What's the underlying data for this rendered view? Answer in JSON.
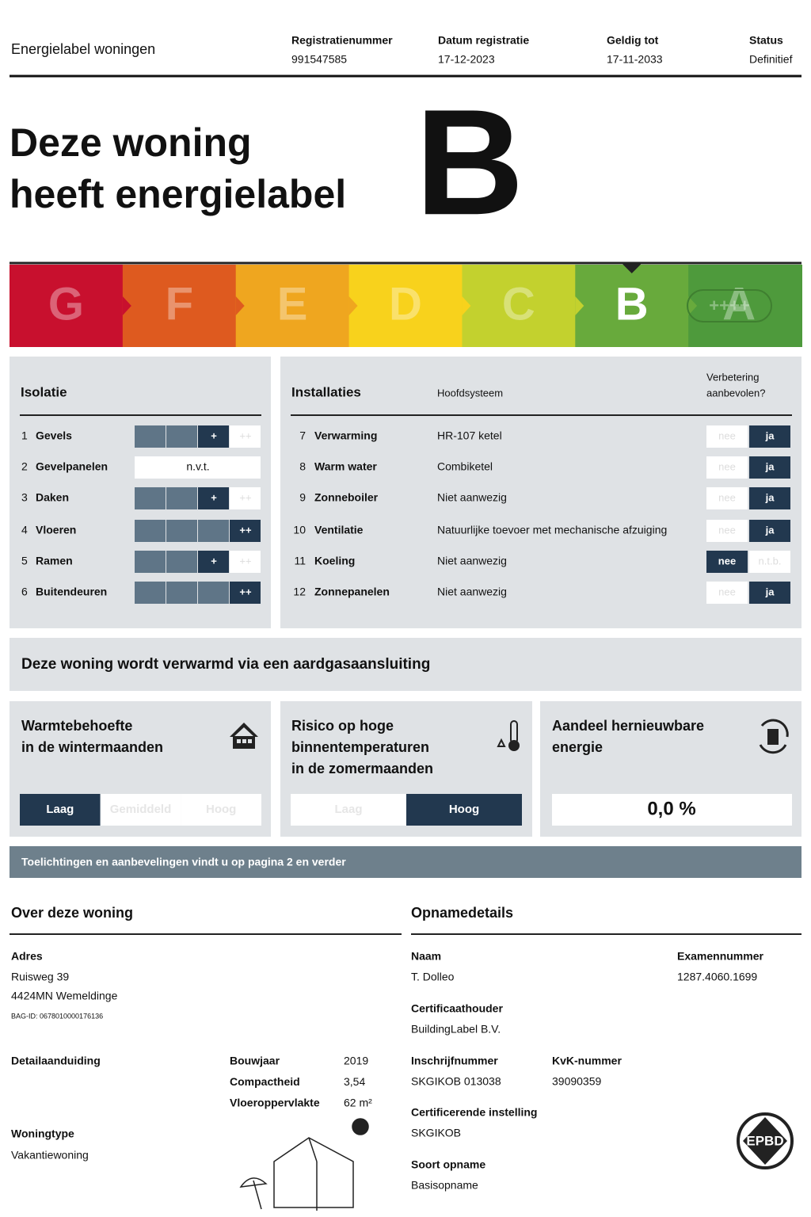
{
  "header": {
    "title": "Energielabel woningen",
    "fields": [
      {
        "label": "Registratienummer",
        "value": "991547585"
      },
      {
        "label": "Datum registratie",
        "value": "17-12-2023"
      },
      {
        "label": "Geldig tot",
        "value": "17-11-2033"
      },
      {
        "label": "Status",
        "value": "Definitief"
      }
    ]
  },
  "headline": {
    "lines": [
      "Deze woning",
      "heeft energielabel"
    ],
    "label": "B"
  },
  "scale": {
    "classes": [
      "G",
      "F",
      "E",
      "D",
      "C",
      "B",
      "A"
    ],
    "extra": "++++",
    "colors": [
      "#c8102e",
      "#de5a1f",
      "#efa61f",
      "#f8d21c",
      "#c3d12e",
      "#68aa3c",
      "#4e9a3c"
    ]
  },
  "isolatie": {
    "title": "Isolatie",
    "max": "++",
    "rows": [
      {
        "num": "1",
        "name": "Gevels",
        "value": "+"
      },
      {
        "num": "2",
        "name": "Gevelpanelen",
        "value": "n.v.t."
      },
      {
        "num": "3",
        "name": "Daken",
        "value": "+"
      },
      {
        "num": "4",
        "name": "Vloeren",
        "value": "++"
      },
      {
        "num": "5",
        "name": "Ramen",
        "value": "+"
      },
      {
        "num": "6",
        "name": "Buitendeuren",
        "value": "++"
      }
    ]
  },
  "installaties": {
    "title": "Installaties",
    "system_header": "Hoofdsysteem",
    "advice_header": [
      "Verbetering",
      "aanbevolen?"
    ],
    "rows": [
      {
        "num": "7",
        "name": "Verwarming",
        "system": "HR-107 ketel",
        "options": [
          "nee",
          "ja"
        ],
        "selected": 1
      },
      {
        "num": "8",
        "name": "Warm water",
        "system": "Combiketel",
        "options": [
          "nee",
          "ja"
        ],
        "selected": 1
      },
      {
        "num": "9",
        "name": "Zonneboiler",
        "system": "Niet aanwezig",
        "options": [
          "nee",
          "ja"
        ],
        "selected": 1
      },
      {
        "num": "10",
        "name": "Ventilatie",
        "system": "Natuurlijke toevoer met mechanische afzuiging",
        "options": [
          "nee",
          "ja"
        ],
        "selected": 1
      },
      {
        "num": "11",
        "name": "Koeling",
        "system": "Niet aanwezig",
        "options": [
          "nee",
          "n.t.b."
        ],
        "selected": 0
      },
      {
        "num": "12",
        "name": "Zonnepanelen",
        "system": "Niet aanwezig",
        "options": [
          "nee",
          "ja"
        ],
        "selected": 1
      }
    ]
  },
  "heating": "Deze woning wordt verwarmd via een aardgasaansluiting",
  "panels": [
    {
      "title": [
        "Warmtebehoefte",
        "in de wintermaanden"
      ],
      "options": [
        "Laag",
        "Gemiddeld",
        "Hoog"
      ],
      "selected": 0
    },
    {
      "title": [
        "Risico op hoge",
        "binnentemperaturen",
        "in de zomermaanden"
      ],
      "options": [
        "Laag",
        "Hoog"
      ],
      "selected": 1
    },
    {
      "title": [
        "Aandeel hernieuwbare",
        "energie"
      ],
      "value": "0,0 %"
    }
  ],
  "notice": "Toelichtingen en aanbevelingen vindt u op pagina 2 en verder",
  "woning": {
    "title": "Over deze woning",
    "address_label": "Adres",
    "address": [
      "Ruisweg 39",
      "4424MN Wemeldinge"
    ],
    "bag": "BAG-ID: 0678010000176136",
    "detail_label": "Detailaanduiding",
    "facts": [
      {
        "label": "Bouwjaar",
        "value": "2019"
      },
      {
        "label": "Compactheid",
        "value": "3,54"
      },
      {
        "label": "Vloeroppervlakte",
        "value": "62 m²"
      }
    ],
    "type_label": "Woningtype",
    "type": "Vakantiewoning"
  },
  "opname": {
    "title": "Opnamedetails",
    "items": [
      {
        "label": "Naam",
        "value": "T. Dolleo"
      },
      {
        "label": "Examennummer",
        "value": "1287.4060.1699"
      },
      {
        "label": "Certificaathouder",
        "value": "BuildingLabel B.V."
      },
      {
        "label": "Inschrijfnummer",
        "value": "SKGIKOB 013038"
      },
      {
        "label": "KvK-nummer",
        "value": "39090359"
      },
      {
        "label": "Certificerende instelling",
        "value": "SKGIKOB"
      },
      {
        "label": "Soort opname",
        "value": "Basisopname"
      }
    ],
    "logo": "EPBD"
  }
}
